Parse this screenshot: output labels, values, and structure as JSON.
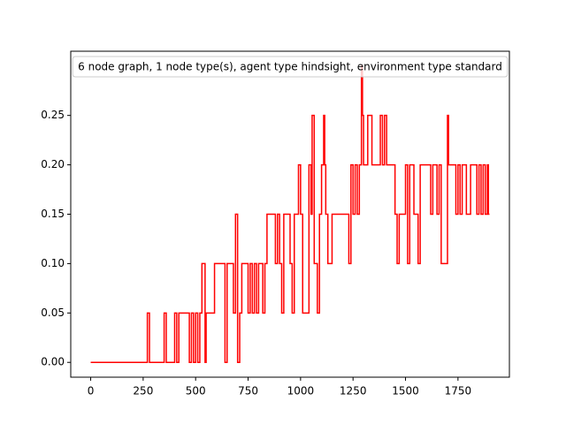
{
  "chart_data": {
    "type": "line",
    "drawstyle": "steps-post",
    "series": [
      {
        "name": "6 node graph, 1 node type(s), agent type hindsight, environment type standard",
        "color": "#ff0000",
        "x": [
          0,
          270,
          280,
          350,
          360,
          400,
          410,
          420,
          470,
          480,
          490,
          500,
          510,
          520,
          530,
          545,
          550,
          590,
          640,
          650,
          680,
          690,
          700,
          710,
          720,
          750,
          760,
          770,
          780,
          790,
          800,
          820,
          830,
          840,
          880,
          890,
          900,
          910,
          920,
          950,
          960,
          970,
          990,
          1000,
          1010,
          1040,
          1050,
          1055,
          1065,
          1080,
          1090,
          1100,
          1110,
          1115,
          1120,
          1130,
          1150,
          1230,
          1240,
          1250,
          1260,
          1270,
          1280,
          1290,
          1295,
          1300,
          1320,
          1340,
          1380,
          1390,
          1400,
          1410,
          1450,
          1460,
          1470,
          1500,
          1510,
          1520,
          1540,
          1560,
          1570,
          1620,
          1630,
          1650,
          1660,
          1670,
          1700,
          1705,
          1740,
          1750,
          1760,
          1770,
          1790,
          1810,
          1840,
          1850,
          1860,
          1870,
          1880,
          1890,
          1895,
          1900
        ],
        "values": [
          0,
          0.05,
          0,
          0.05,
          0,
          0.05,
          0,
          0.05,
          0,
          0.05,
          0,
          0.05,
          0,
          0.05,
          0.1,
          0,
          0.05,
          0.1,
          0,
          0.1,
          0.05,
          0.15,
          0,
          0.05,
          0.1,
          0.05,
          0.1,
          0.05,
          0.1,
          0.05,
          0.1,
          0.05,
          0.1,
          0.15,
          0.1,
          0.15,
          0.1,
          0.05,
          0.15,
          0.1,
          0.05,
          0.15,
          0.2,
          0.15,
          0.05,
          0.2,
          0.15,
          0.25,
          0.1,
          0.05,
          0.15,
          0.2,
          0.25,
          0.2,
          0.15,
          0.1,
          0.15,
          0.1,
          0.2,
          0.15,
          0.2,
          0.15,
          0.2,
          0.3,
          0.25,
          0.2,
          0.25,
          0.2,
          0.25,
          0.2,
          0.25,
          0.2,
          0.15,
          0.1,
          0.15,
          0.2,
          0.1,
          0.2,
          0.15,
          0.1,
          0.2,
          0.15,
          0.2,
          0.15,
          0.2,
          0.1,
          0.25,
          0.2,
          0.15,
          0.2,
          0.15,
          0.2,
          0.15,
          0.2,
          0.15,
          0.2,
          0.15,
          0.2,
          0.15,
          0.2,
          0.15,
          0.15
        ]
      }
    ],
    "xlim": [
      -95,
      1995
    ],
    "ylim": [
      -0.015,
      0.315
    ],
    "xticks": [
      0,
      250,
      500,
      750,
      1000,
      1250,
      1500,
      1750
    ],
    "yticks": [
      {
        "value": 0,
        "label": "0.00"
      },
      {
        "value": 0.05,
        "label": "0.05"
      },
      {
        "value": 0.1,
        "label": "0.10"
      },
      {
        "value": 0.15,
        "label": "0.15"
      },
      {
        "value": 0.2,
        "label": "0.20"
      },
      {
        "value": 0.25,
        "label": "0.25"
      }
    ],
    "legend": "upper center"
  }
}
